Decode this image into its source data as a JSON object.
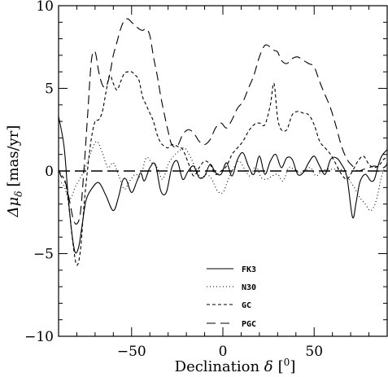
{
  "chart_data": {
    "type": "line",
    "xlabel_text": "Declination ",
    "xlabel_symbol": "δ",
    "xlabel_unit_open": "[",
    "xlabel_unit": "0",
    "xlabel_unit_close": "]",
    "ylabel_symbol": "Δμ",
    "ylabel_sub": "δ",
    "ylabel_unit": "[mas/yr]",
    "xlim": [
      -90,
      90
    ],
    "ylim": [
      -10,
      10
    ],
    "x_ticks": [
      -50,
      0,
      50
    ],
    "y_ticks": [
      -10,
      -5,
      0,
      5,
      10
    ],
    "x_tick_labels": [
      "−50",
      "0",
      "50"
    ],
    "y_tick_labels": [
      "−10",
      "−5",
      "0",
      "5",
      "10"
    ],
    "zero_line": 0,
    "legend_position": "bottom-center",
    "series": [
      {
        "name": "FK3",
        "dash": "solid",
        "x": [
          -90,
          -87,
          -85,
          -83,
          -81,
          -79,
          -77,
          -75,
          -72,
          -68,
          -64,
          -60,
          -57,
          -55,
          -53,
          -50,
          -47,
          -45,
          -43,
          -40,
          -37,
          -34,
          -31,
          -28,
          -25,
          -22,
          -19,
          -16,
          -13,
          -10,
          -7,
          -4,
          -1,
          2,
          5,
          8,
          11,
          14,
          17,
          20,
          23,
          26,
          29,
          32,
          35,
          38,
          41,
          44,
          47,
          50,
          53,
          56,
          59,
          62,
          65,
          68,
          71,
          73,
          75,
          78,
          81,
          83,
          85,
          87,
          90
        ],
        "y": [
          3.3,
          1.5,
          -1.2,
          -3.5,
          -4.9,
          -4.6,
          -3.2,
          -1.8,
          -1.1,
          -0.7,
          -1.5,
          -2.4,
          -1.5,
          -0.6,
          -0.5,
          -1.3,
          -0.6,
          -0.1,
          -0.6,
          0.2,
          0.4,
          -1.2,
          -1.3,
          0.2,
          0.6,
          -0.5,
          0.0,
          0.3,
          -0.4,
          -0.3,
          0.4,
          -0.1,
          -0.2,
          0.5,
          -0.3,
          0.7,
          1.1,
          0.3,
          -0.2,
          0.9,
          -0.2,
          0.6,
          1.0,
          0.2,
          0.8,
          0.7,
          -0.2,
          -0.1,
          0.5,
          0.9,
          0.3,
          -0.2,
          0.7,
          0.8,
          0.4,
          -0.4,
          -2.8,
          -1.9,
          -0.7,
          -0.2,
          -0.6,
          -0.5,
          0.3,
          0.9,
          1.3
        ]
      },
      {
        "name": "N30",
        "dash": "1,3",
        "x": [
          -90,
          -87,
          -85,
          -83,
          -81,
          -79,
          -77,
          -75,
          -72,
          -69,
          -66,
          -63,
          -60,
          -57,
          -54,
          -51,
          -48,
          -45,
          -42,
          -39,
          -36,
          -33,
          -30,
          -27,
          -24,
          -21,
          -18,
          -15,
          -12,
          -9,
          -6,
          -3,
          0,
          3,
          6,
          9,
          12,
          15,
          18,
          21,
          24,
          27,
          30,
          33,
          36,
          39,
          42,
          45,
          48,
          51,
          54,
          57,
          60,
          63,
          66,
          69,
          72,
          75,
          78,
          81,
          84,
          87,
          90
        ],
        "y": [
          -0.6,
          -0.9,
          -1.6,
          -1.6,
          -1.0,
          -0.6,
          -0.2,
          0.3,
          1.2,
          1.8,
          1.1,
          0.2,
          0.5,
          -0.3,
          -1.1,
          -0.6,
          -0.2,
          -0.3,
          0.8,
          0.5,
          0.2,
          -0.5,
          0.4,
          0.9,
          1.2,
          1.4,
          0.9,
          0.2,
          -0.4,
          -0.2,
          -0.5,
          -1.2,
          -1.3,
          -0.5,
          0.2,
          0.6,
          0.1,
          -0.3,
          0.3,
          -0.4,
          -0.5,
          -0.3,
          -0.2,
          -0.6,
          0.2,
          0.1,
          -0.1,
          0.0,
          0.2,
          -0.3,
          0.0,
          0.1,
          0.1,
          0.1,
          0.0,
          -0.5,
          -1.0,
          -1.6,
          -2.0,
          -2.4,
          -1.8,
          -0.3,
          0.5
        ]
      },
      {
        "name": "GC",
        "dash": "4,3",
        "x": [
          -90,
          -88,
          -86,
          -84,
          -82,
          -80,
          -78,
          -76,
          -74,
          -72,
          -70,
          -68,
          -66,
          -64,
          -62,
          -60,
          -58,
          -56,
          -54,
          -52,
          -50,
          -48,
          -46,
          -44,
          -42,
          -40,
          -38,
          -36,
          -34,
          -32,
          -30,
          -28,
          -25,
          -22,
          -19,
          -16,
          -13,
          -10,
          -7,
          -4,
          -1,
          2,
          5,
          8,
          11,
          14,
          17,
          20,
          23,
          26,
          28,
          30,
          32,
          35,
          38,
          41,
          44,
          47,
          50,
          53,
          56,
          59,
          62,
          65,
          68,
          71,
          74,
          77,
          80,
          83,
          86,
          88,
          90
        ],
        "y": [
          0.0,
          -0.3,
          -0.8,
          -2.5,
          -4.5,
          -5.7,
          -4.8,
          -2.0,
          0.2,
          2.0,
          3.0,
          3.1,
          3.6,
          4.8,
          5.8,
          5.3,
          4.9,
          5.4,
          5.9,
          6.0,
          6.0,
          5.8,
          5.5,
          4.5,
          4.0,
          3.5,
          3.0,
          2.2,
          1.7,
          1.5,
          1.4,
          1.6,
          1.5,
          1.3,
          0.5,
          -0.3,
          0.2,
          0.6,
          0.4,
          -0.2,
          0.0,
          0.3,
          1.0,
          1.4,
          1.8,
          2.4,
          2.8,
          2.9,
          2.8,
          4.0,
          5.3,
          3.2,
          2.5,
          2.5,
          3.4,
          3.6,
          3.5,
          3.4,
          2.8,
          1.8,
          1.4,
          1.0,
          0.4,
          -0.2,
          -0.5,
          0.0,
          0.6,
          0.9,
          0.4,
          0.2,
          0.4,
          0.7,
          0.8
        ]
      },
      {
        "name": "PGC",
        "dash": "11,6",
        "x": [
          -90,
          -88,
          -86,
          -84,
          -82,
          -80,
          -78,
          -76,
          -74,
          -72,
          -70,
          -68,
          -66,
          -64,
          -62,
          -60,
          -58,
          -56,
          -54,
          -52,
          -50,
          -48,
          -46,
          -44,
          -42,
          -40,
          -38,
          -36,
          -34,
          -32,
          -30,
          -28,
          -25,
          -22,
          -19,
          -16,
          -13,
          -10,
          -7,
          -4,
          -1,
          2,
          5,
          8,
          11,
          14,
          17,
          20,
          23,
          26,
          28,
          30,
          32,
          35,
          38,
          41,
          44,
          47,
          50,
          53,
          56,
          59,
          62,
          65,
          68,
          71,
          74,
          77,
          80,
          83,
          86,
          88,
          90
        ],
        "y": [
          0.1,
          -0.5,
          -0.8,
          -1.8,
          -2.9,
          -3.2,
          -2.5,
          0.2,
          3.5,
          6.7,
          7.2,
          6.0,
          5.2,
          5.1,
          5.8,
          7.0,
          7.8,
          8.6,
          9.1,
          9.2,
          9.0,
          8.8,
          8.6,
          8.5,
          8.6,
          8.2,
          6.9,
          5.8,
          4.5,
          3.4,
          2.4,
          1.6,
          1.5,
          2.2,
          2.5,
          2.3,
          1.8,
          1.6,
          1.9,
          2.6,
          2.9,
          2.6,
          3.1,
          3.8,
          4.2,
          5.0,
          5.8,
          6.9,
          7.6,
          7.5,
          7.3,
          7.2,
          6.7,
          6.5,
          6.8,
          6.9,
          6.7,
          6.5,
          6.3,
          5.4,
          4.6,
          3.8,
          2.7,
          1.5,
          0.7,
          0.3,
          0.0,
          0.1,
          0.2,
          0.3,
          0.2,
          0.2,
          0.4
        ]
      }
    ]
  }
}
